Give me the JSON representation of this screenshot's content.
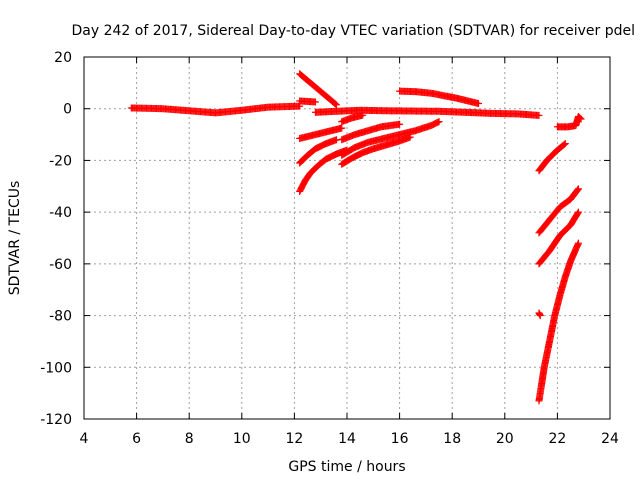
{
  "chart_data": {
    "type": "scatter",
    "title": "Day 242 of 2017, Sidereal Day-to-day VTEC variation (SDTVAR) for receiver pdel",
    "xlabel": "GPS time / hours",
    "ylabel": "SDTVAR / TECUs",
    "xlim": [
      4,
      24
    ],
    "ylim": [
      -120,
      20
    ],
    "xticks": [
      4,
      6,
      8,
      10,
      12,
      14,
      16,
      18,
      20,
      22,
      24
    ],
    "yticks": [
      -120,
      -100,
      -80,
      -60,
      -40,
      -20,
      0,
      20
    ],
    "xtick_labels": [
      "4",
      "6",
      "8",
      "10",
      "12",
      "14",
      "16",
      "18",
      "20",
      "22",
      "24"
    ],
    "ytick_labels": [
      "-120",
      "-100",
      "-80",
      "-60",
      "-40",
      "-20",
      "0",
      "20"
    ],
    "grid": true,
    "marker": "+",
    "color": "#ff0000",
    "series": [
      {
        "points": [
          [
            5.8,
            0.3
          ],
          [
            7.0,
            0.0
          ],
          [
            8.0,
            -0.8
          ],
          [
            9.0,
            -1.6
          ],
          [
            10.0,
            -0.6
          ],
          [
            11.0,
            0.6
          ],
          [
            12.2,
            1.0
          ]
        ]
      },
      {
        "points": [
          [
            12.2,
            3.0
          ],
          [
            12.8,
            2.6
          ]
        ]
      },
      {
        "points": [
          [
            12.8,
            -1.4
          ],
          [
            13.6,
            -1.0
          ],
          [
            14.5,
            -0.6
          ],
          [
            15.5,
            -0.8
          ],
          [
            16.5,
            -0.9
          ],
          [
            17.5,
            -1.0
          ],
          [
            18.5,
            -1.4
          ],
          [
            19.5,
            -1.8
          ],
          [
            20.5,
            -2.0
          ],
          [
            21.3,
            -2.6
          ]
        ]
      },
      {
        "points": [
          [
            16.0,
            6.8
          ],
          [
            16.6,
            6.6
          ],
          [
            17.2,
            6.0
          ],
          [
            17.8,
            4.8
          ],
          [
            18.2,
            4.0
          ],
          [
            18.6,
            3.0
          ],
          [
            19.0,
            2.0
          ]
        ]
      },
      {
        "points": [
          [
            12.2,
            -11.5
          ],
          [
            12.6,
            -10.5
          ],
          [
            13.0,
            -9.5
          ],
          [
            13.4,
            -8.5
          ],
          [
            13.8,
            -7.5
          ]
        ]
      },
      {
        "points": [
          [
            12.2,
            -21.0
          ],
          [
            12.5,
            -18.0
          ],
          [
            12.8,
            -15.5
          ],
          [
            13.2,
            -13.5
          ],
          [
            13.6,
            -12.0
          ]
        ]
      },
      {
        "points": [
          [
            12.2,
            -32.0
          ],
          [
            12.4,
            -28.0
          ],
          [
            12.6,
            -25.0
          ],
          [
            12.9,
            -22.0
          ],
          [
            13.2,
            -19.5
          ],
          [
            13.6,
            -17.5
          ],
          [
            14.0,
            -16.0
          ]
        ]
      },
      {
        "points": [
          [
            13.8,
            -5.0
          ],
          [
            14.2,
            -3.5
          ],
          [
            14.6,
            -2.5
          ]
        ]
      },
      {
        "points": [
          [
            13.8,
            -12.0
          ],
          [
            14.3,
            -10.0
          ],
          [
            14.8,
            -8.5
          ],
          [
            15.3,
            -7.0
          ],
          [
            16.0,
            -6.0
          ]
        ]
      },
      {
        "points": [
          [
            13.8,
            -18.0
          ],
          [
            14.3,
            -15.0
          ],
          [
            14.8,
            -13.0
          ],
          [
            15.4,
            -11.5
          ],
          [
            16.0,
            -10.0
          ],
          [
            16.6,
            -8.5
          ],
          [
            17.2,
            -6.5
          ],
          [
            17.5,
            -5.0
          ]
        ]
      },
      {
        "points": [
          [
            13.8,
            -21.5
          ],
          [
            14.2,
            -19.0
          ],
          [
            14.6,
            -17.0
          ],
          [
            15.0,
            -15.5
          ],
          [
            15.5,
            -14.0
          ],
          [
            16.0,
            -12.5
          ],
          [
            16.4,
            -11.0
          ]
        ]
      },
      {
        "points": [
          [
            12.2,
            13.5
          ],
          [
            13.6,
            1.5
          ]
        ]
      },
      {
        "points": [
          [
            21.3,
            -24.0
          ],
          [
            21.6,
            -20.0
          ],
          [
            22.0,
            -16.0
          ],
          [
            22.3,
            -13.5
          ]
        ]
      },
      {
        "points": [
          [
            21.3,
            -48.0
          ],
          [
            21.7,
            -43.0
          ],
          [
            22.1,
            -38.0
          ],
          [
            22.5,
            -35.0
          ],
          [
            22.8,
            -31.0
          ]
        ]
      },
      {
        "points": [
          [
            21.3,
            -60.0
          ],
          [
            21.7,
            -55.0
          ],
          [
            22.1,
            -49.0
          ],
          [
            22.5,
            -45.0
          ],
          [
            22.8,
            -40.0
          ]
        ]
      },
      {
        "points": [
          [
            21.3,
            -113.0
          ],
          [
            21.5,
            -100.0
          ],
          [
            21.7,
            -90.0
          ],
          [
            21.9,
            -80.0
          ],
          [
            22.1,
            -72.0
          ],
          [
            22.3,
            -65.0
          ],
          [
            22.5,
            -59.0
          ],
          [
            22.8,
            -52.0
          ]
        ]
      },
      {
        "points": [
          [
            21.3,
            -79.0
          ],
          [
            21.35,
            -80.0
          ]
        ]
      },
      {
        "points": [
          [
            22.0,
            -7.0
          ],
          [
            22.4,
            -7.0
          ],
          [
            22.7,
            -6.5
          ],
          [
            22.8,
            -3.0
          ],
          [
            22.9,
            -4.0
          ]
        ]
      }
    ]
  }
}
